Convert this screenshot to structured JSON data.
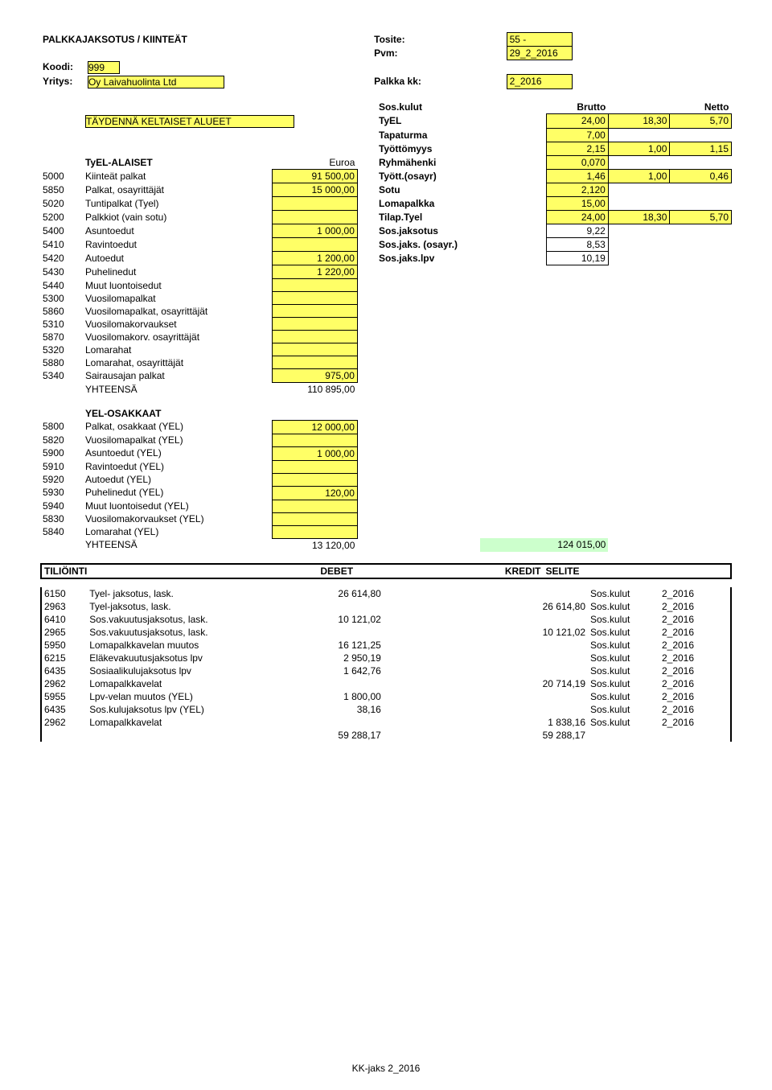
{
  "title": "PALKKAJAKSOTUS / KIINTEÄT",
  "header": {
    "tosite_label": "Tosite:",
    "tosite_val": "55 -",
    "pvm_label": "Pvm:",
    "pvm_val": "29_2_2016",
    "koodi_label": "Koodi:",
    "koodi_val": "999",
    "yritys_label": "Yritys:",
    "yritys_val": "Oy Laivahuolinta Ltd",
    "palkka_kk_label": "Palkka kk:",
    "palkka_kk_val": "2_2016"
  },
  "taydenna": "TÄYDENNÄ KELTAISET ALUEET",
  "sos_header": {
    "sos": "Sos.kulut",
    "brutto": "Brutto",
    "netto": "Netto"
  },
  "rates": [
    {
      "label": "TyEL",
      "a": "24,00",
      "b": "18,30",
      "c": "5,70",
      "a_y": true,
      "b_y": true,
      "c_y": true
    },
    {
      "label": "Tapaturma",
      "a": "7,00",
      "b": "",
      "c": "",
      "a_y": true
    },
    {
      "label": "Työttömyys",
      "a": "2,15",
      "b": "1,00",
      "c": "1,15",
      "a_y": true,
      "b_y": true,
      "c_y": true
    },
    {
      "label": "Ryhmähenki",
      "a": "0,070",
      "b": "",
      "c": "",
      "a_y": true
    },
    {
      "label": "Tyött.(osayr)",
      "a": "1,46",
      "b": "1,00",
      "c": "0,46",
      "a_y": true,
      "b_y": true,
      "c_y": true
    },
    {
      "label": "Sotu",
      "a": "2,120",
      "b": "",
      "c": "",
      "a_y": true
    },
    {
      "label": "Lomapalkka",
      "a": "15,00",
      "b": "",
      "c": "",
      "a_y": true
    },
    {
      "label": "Tilap.Tyel",
      "a": "24,00",
      "b": "18,30",
      "c": "5,70",
      "a_y": true,
      "b_y": true,
      "c_y": true
    },
    {
      "label": "Sos.jaksotus",
      "a": "9,22",
      "b": "",
      "c": ""
    },
    {
      "label": "Sos.jaks. (osayr.)",
      "a": "8,53",
      "b": "",
      "c": ""
    },
    {
      "label": "Sos.jaks.lpv",
      "a": "10,19",
      "b": "",
      "c": ""
    }
  ],
  "tyel_section": {
    "heading": "TyEL-ALAISET",
    "euroa": "Euroa",
    "rows": [
      {
        "code": "5000",
        "name": "Kiinteät palkat",
        "val": "91 500,00",
        "y": true
      },
      {
        "code": "5850",
        "name": "Palkat, osayrittäjät",
        "val": "15 000,00",
        "y": true
      },
      {
        "code": "5020",
        "name": "Tuntipalkat (Tyel)",
        "val": "",
        "y": true
      },
      {
        "code": "5200",
        "name": "Palkkiot (vain sotu)",
        "val": "",
        "y": true
      },
      {
        "code": "5400",
        "name": "Asuntoedut",
        "val": "1 000,00",
        "y": true
      },
      {
        "code": "5410",
        "name": "Ravintoedut",
        "val": "",
        "y": true
      },
      {
        "code": "5420",
        "name": "Autoedut",
        "val": "1 200,00",
        "y": true
      },
      {
        "code": "5430",
        "name": "Puhelinedut",
        "val": "1 220,00",
        "y": true
      },
      {
        "code": "5440",
        "name": "Muut luontoisedut",
        "val": "",
        "y": true
      },
      {
        "code": "5300",
        "name": "Vuosilomapalkat",
        "val": "",
        "y": true
      },
      {
        "code": "5860",
        "name": "Vuosilomapalkat, osayrittäjät",
        "val": "",
        "y": true
      },
      {
        "code": "5310",
        "name": "Vuosilomakorvaukset",
        "val": "",
        "y": true
      },
      {
        "code": "5870",
        "name": "Vuosilomakorv. osayrittäjät",
        "val": "",
        "y": true
      },
      {
        "code": "5320",
        "name": "Lomarahat",
        "val": "",
        "y": true
      },
      {
        "code": "5880",
        "name": "Lomarahat, osayrittäjät",
        "val": "",
        "y": true
      },
      {
        "code": "5340",
        "name": "Sairausajan palkat",
        "val": "975,00",
        "y": true
      }
    ],
    "total_label": "YHTEENSÄ",
    "total_val": "110 895,00"
  },
  "yel_section": {
    "heading": "YEL-OSAKKAAT",
    "rows": [
      {
        "code": "5800",
        "name": "Palkat, osakkaat (YEL)",
        "val": "12 000,00",
        "y": true
      },
      {
        "code": "5820",
        "name": "Vuosilomapalkat (YEL)",
        "val": "",
        "y": true
      },
      {
        "code": "5900",
        "name": "Asuntoedut (YEL)",
        "val": "1 000,00",
        "y": true
      },
      {
        "code": "5910",
        "name": "Ravintoedut (YEL)",
        "val": "",
        "y": true
      },
      {
        "code": "5920",
        "name": "Autoedut (YEL)",
        "val": "",
        "y": true
      },
      {
        "code": "5930",
        "name": "Puhelinedut (YEL)",
        "val": "120,00",
        "y": true
      },
      {
        "code": "5940",
        "name": "Muut luontoisedut (YEL)",
        "val": "",
        "y": true
      },
      {
        "code": "5830",
        "name": "Vuosilomakorvaukset (YEL)",
        "val": "",
        "y": true
      },
      {
        "code": "5840",
        "name": "Lomarahat (YEL)",
        "val": "",
        "y": true
      }
    ],
    "total_label": "YHTEENSÄ",
    "total_val": "13 120,00",
    "grand_total": "124 015,00"
  },
  "tiliointi": {
    "heading": "TILIÖINTI",
    "debet": "DEBET",
    "kredit": "KREDIT",
    "selite": "SELITE",
    "rows": [
      {
        "code": "6150",
        "name": "Tyel- jaksotus, lask.",
        "debet": "26 614,80",
        "kredit": "",
        "sel1": "Sos.kulut",
        "sel2": "2_2016"
      },
      {
        "code": "2963",
        "name": "Tyel-jaksotus, lask.",
        "debet": "",
        "kredit": "26 614,80",
        "sel1": "Sos.kulut",
        "sel2": "2_2016"
      },
      {
        "code": "6410",
        "name": "Sos.vakuutusjaksotus, lask.",
        "debet": "10 121,02",
        "kredit": "",
        "sel1": "Sos.kulut",
        "sel2": "2_2016"
      },
      {
        "code": "2965",
        "name": "Sos.vakuutusjaksotus, lask.",
        "debet": "",
        "kredit": "10 121,02",
        "sel1": "Sos.kulut",
        "sel2": "2_2016"
      },
      {
        "code": "5950",
        "name": "Lomapalkkavelan muutos",
        "debet": "16 121,25",
        "kredit": "",
        "sel1": "Sos.kulut",
        "sel2": "2_2016"
      },
      {
        "code": "6215",
        "name": "Eläkevakuutusjaksotus lpv",
        "debet": "2 950,19",
        "kredit": "",
        "sel1": "Sos.kulut",
        "sel2": "2_2016"
      },
      {
        "code": "6435",
        "name": "Sosiaalikulujaksotus lpv",
        "debet": "1 642,76",
        "kredit": "",
        "sel1": "Sos.kulut",
        "sel2": "2_2016"
      },
      {
        "code": "2962",
        "name": "Lomapalkkavelat",
        "debet": "",
        "kredit": "20 714,19",
        "sel1": "Sos.kulut",
        "sel2": "2_2016"
      },
      {
        "code": "5955",
        "name": "Lpv-velan muutos (YEL)",
        "debet": "1 800,00",
        "kredit": "",
        "sel1": "Sos.kulut",
        "sel2": "2_2016"
      },
      {
        "code": "6435",
        "name": "Sos.kulujaksotus lpv (YEL)",
        "debet": "38,16",
        "kredit": "",
        "sel1": "Sos.kulut",
        "sel2": "2_2016"
      },
      {
        "code": "2962",
        "name": "Lomapalkkavelat",
        "debet": "",
        "kredit": "1 838,16",
        "sel1": "Sos.kulut",
        "sel2": "2_2016"
      }
    ],
    "sum_debet": "59 288,17",
    "sum_kredit": "59 288,17"
  },
  "footer": "KK-jaks 2_2016",
  "colors": {
    "yellow": "#ffff66",
    "green": "#ccffcc",
    "black": "#000000"
  }
}
